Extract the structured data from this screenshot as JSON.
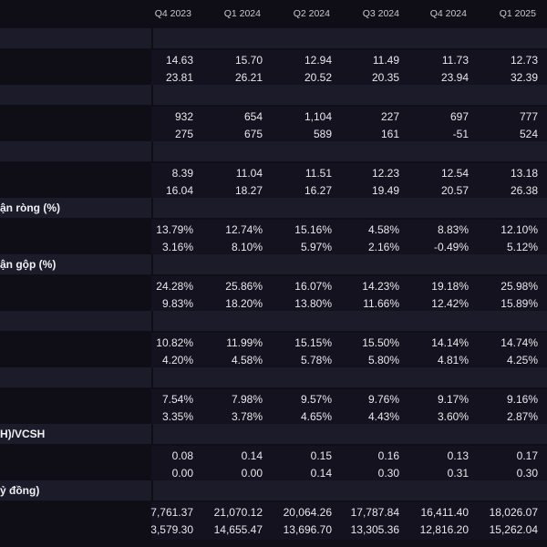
{
  "header": {
    "periods": [
      "Q4 2023",
      "Q1 2024",
      "Q2 2024",
      "Q3 2024",
      "Q4 2024",
      "Q1 2025"
    ]
  },
  "sections": [
    {
      "label": "",
      "rows": [
        [
          "14.63",
          "15.70",
          "12.94",
          "11.49",
          "11.73",
          "12.73"
        ],
        [
          "23.81",
          "26.21",
          "20.52",
          "20.35",
          "23.94",
          "32.39"
        ]
      ]
    },
    {
      "label": "",
      "rows": [
        [
          "932",
          "654",
          "1,104",
          "227",
          "697",
          "777"
        ],
        [
          "275",
          "675",
          "589",
          "161",
          "-51",
          "524"
        ]
      ]
    },
    {
      "label": "",
      "rows": [
        [
          "8.39",
          "11.04",
          "11.51",
          "12.23",
          "12.54",
          "13.18"
        ],
        [
          "16.04",
          "18.27",
          "16.27",
          "19.49",
          "20.57",
          "26.38"
        ]
      ]
    },
    {
      "label": "ận ròng (%)",
      "rows": [
        [
          "13.79%",
          "12.74%",
          "15.16%",
          "4.58%",
          "8.83%",
          "12.10%"
        ],
        [
          "3.16%",
          "8.10%",
          "5.97%",
          "2.16%",
          "-0.49%",
          "5.12%"
        ]
      ]
    },
    {
      "label": "ận gộp (%)",
      "rows": [
        [
          "24.28%",
          "25.86%",
          "16.07%",
          "14.23%",
          "19.18%",
          "25.98%"
        ],
        [
          "9.83%",
          "18.20%",
          "13.80%",
          "11.66%",
          "12.42%",
          "15.89%"
        ]
      ]
    },
    {
      "label": "",
      "rows": [
        [
          "10.82%",
          "11.99%",
          "15.15%",
          "15.50%",
          "14.14%",
          "14.74%"
        ],
        [
          "4.20%",
          "4.58%",
          "5.78%",
          "5.80%",
          "4.81%",
          "4.25%"
        ]
      ]
    },
    {
      "label": "",
      "rows": [
        [
          "7.54%",
          "7.98%",
          "9.57%",
          "9.76%",
          "9.17%",
          "9.16%"
        ],
        [
          "3.35%",
          "3.78%",
          "4.65%",
          "4.43%",
          "3.60%",
          "2.87%"
        ]
      ]
    },
    {
      "label": "H)/VCSH",
      "rows": [
        [
          "0.08",
          "0.14",
          "0.15",
          "0.16",
          "0.13",
          "0.17"
        ],
        [
          "0.00",
          "0.00",
          "0.14",
          "0.30",
          "0.31",
          "0.30"
        ]
      ]
    },
    {
      "label": "ỷ đồng)",
      "rows": [
        [
          "7,761.37",
          "21,070.12",
          "20,064.26",
          "17,787.84",
          "16,411.40",
          "18,026.07"
        ],
        [
          "3,579.30",
          "14,655.47",
          "13,696.70",
          "13,305.36",
          "12,816.20",
          "15,262.04"
        ]
      ]
    }
  ]
}
